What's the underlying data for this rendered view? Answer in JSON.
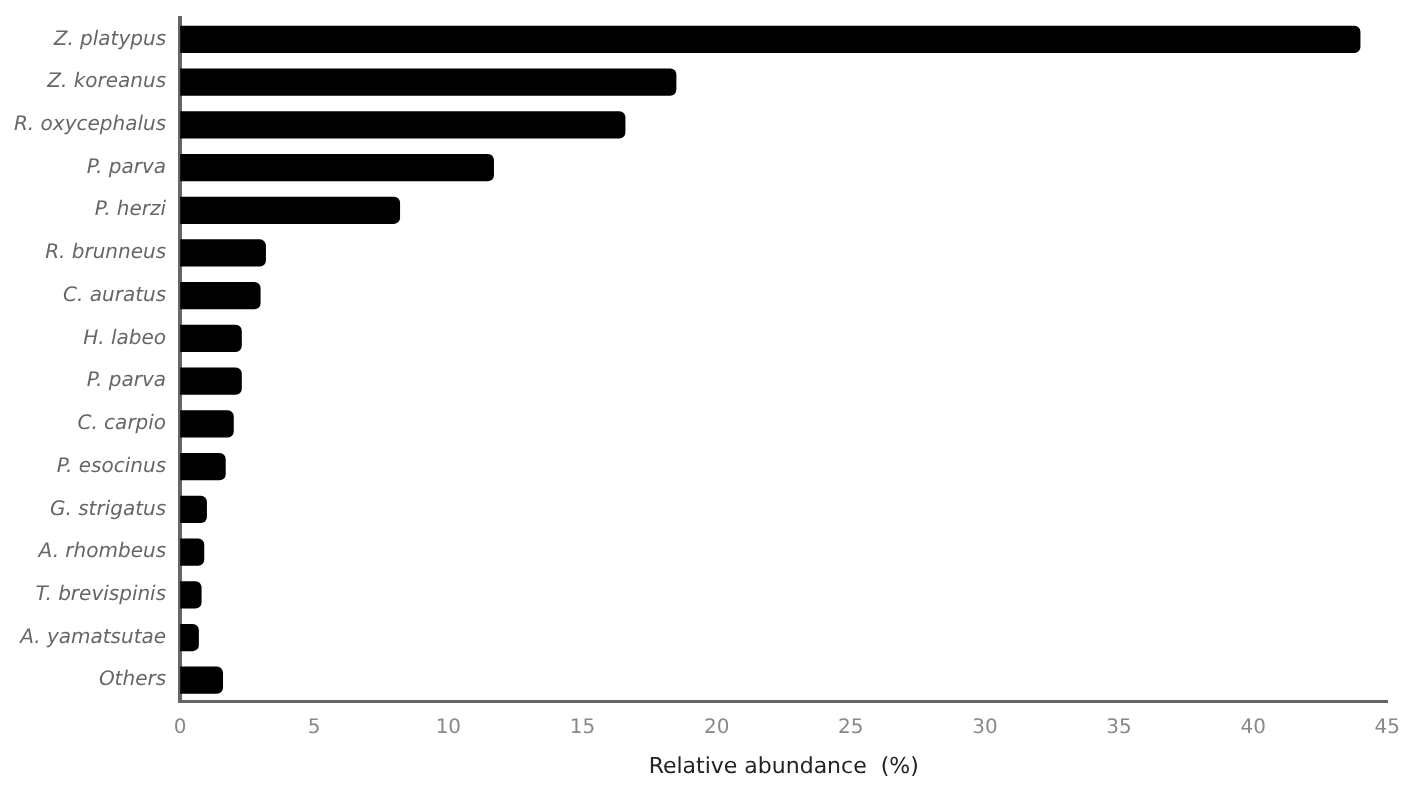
{
  "chart_data": {
    "type": "bar",
    "orientation": "horizontal",
    "categories": [
      "Z. platypus",
      "Z. koreanus",
      "R. oxycephalus",
      "P. parva",
      "P. herzi",
      "R. brunneus",
      "C. auratus",
      "H. labeo",
      "P. parva",
      "C. carpio",
      "P. esocinus",
      "G. strigatus",
      "A. rhombeus",
      "T. brevispinis",
      "A. yamatsutae",
      "Others"
    ],
    "values": [
      44,
      18.5,
      16.6,
      11.7,
      8.2,
      3.2,
      3.0,
      2.3,
      2.3,
      2.0,
      1.7,
      1.0,
      0.9,
      0.8,
      0.7,
      1.6
    ],
    "color": "#000000",
    "xlabel": "Relative abundance  (%)",
    "xlim": [
      0,
      45
    ],
    "xticks": [
      0,
      5,
      10,
      15,
      20,
      25,
      30,
      35,
      40,
      45
    ],
    "grid": false,
    "legend": false
  }
}
